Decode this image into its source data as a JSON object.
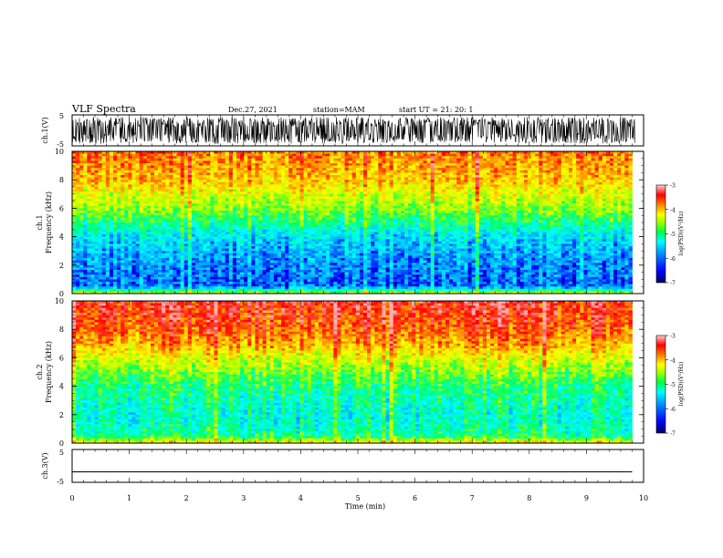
{
  "header": {
    "title": "VLF Spectra",
    "date": "Dec.27, 2021",
    "station": "station=MAM",
    "start": "start  UT =   21: 20: 1"
  },
  "chart_data": [
    {
      "type": "line",
      "name": "ch1-waveform",
      "ylabel": "ch.1(V)",
      "ylim": [
        -5,
        5
      ],
      "yticklabels": [
        "5",
        "-5"
      ],
      "description_values": "noisy waveform filling roughly -4 to 4 V"
    },
    {
      "type": "heatmap",
      "name": "ch1-spectrogram",
      "ylabel_top": "ch.1",
      "ylabel": "Frequency (kHz)",
      "ylim": [
        0,
        10
      ],
      "yticks": [
        "0",
        "2",
        "4",
        "6",
        "8",
        "10"
      ],
      "xlim": [
        0,
        10
      ],
      "data_extent_min": 9.8,
      "frequency_profile_khz": [
        0,
        0.5,
        2,
        4,
        5,
        6,
        7,
        8,
        10
      ],
      "log_psd_profile": [
        -4.5,
        -6.3,
        -6.2,
        -5.8,
        -5.3,
        -4.8,
        -4.5,
        -4.1,
        -3.8
      ],
      "colorbar": {
        "label": "log(PSD)(V²/Hz)",
        "range": [
          -7,
          -3
        ],
        "ticks": [
          "-3",
          "-4",
          "-5",
          "-6",
          "-7"
        ]
      }
    },
    {
      "type": "heatmap",
      "name": "ch2-spectrogram",
      "ylabel_top": "ch.2",
      "ylabel": "Frequency (kHz)",
      "ylim": [
        0,
        10
      ],
      "yticks": [
        "0",
        "2",
        "4",
        "6",
        "8",
        "10"
      ],
      "xlim": [
        0,
        10
      ],
      "data_extent_min": 9.8,
      "frequency_profile_khz": [
        0,
        0.5,
        2,
        4,
        5,
        6,
        7,
        8,
        10
      ],
      "log_psd_profile": [
        -4.2,
        -5.4,
        -5.6,
        -5.3,
        -4.9,
        -4.5,
        -4.0,
        -3.7,
        -3.4
      ],
      "colorbar": {
        "label": "log(PSD)(V²/Hz)",
        "range": [
          -7,
          -3
        ],
        "ticks": [
          "-3",
          "-4",
          "-5",
          "-6",
          "-7"
        ]
      }
    },
    {
      "type": "line",
      "name": "ch3-waveform",
      "ylabel": "ch.3(V)",
      "ylim": [
        -5,
        5
      ],
      "yticklabels": [
        "5",
        "-5"
      ],
      "x": [
        0,
        9.8
      ],
      "y": [
        -1.8,
        -1.8
      ]
    }
  ],
  "xaxis": {
    "label": "Time (min)",
    "ticks": [
      "0",
      "1",
      "2",
      "3",
      "4",
      "5",
      "6",
      "7",
      "8",
      "9",
      "10"
    ],
    "range": [
      0,
      10
    ]
  },
  "colors": {
    "colormap": [
      "#00007f",
      "#0000ff",
      "#00aaff",
      "#00ffff",
      "#00ff66",
      "#a6ff00",
      "#ffff00",
      "#ff9900",
      "#ff0000",
      "#ffb0b0"
    ],
    "waveform": "#000000"
  }
}
